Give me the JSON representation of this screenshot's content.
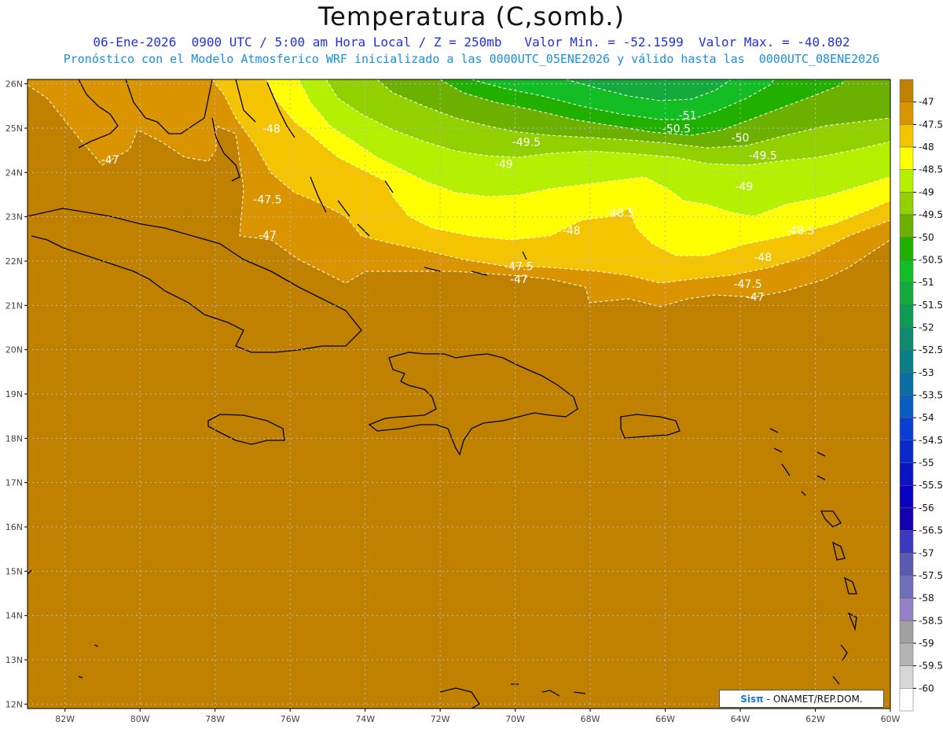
{
  "title": "Temperatura (C,somb.)",
  "subtitle_line1": "06-Ene-2026  0900 UTC / 5:00 am Hora Local / Z = 250mb   Valor Min. = -52.1599  Valor Max. = -40.802",
  "subtitle_line2": "Pronóstico con el Modelo Atmosferico WRF inicializado a las 0000UTC_05ENE2026 y válido hasta las  0000UTC_08ENE2026",
  "map": {
    "lon_min": -83,
    "lon_max": -60,
    "lat_min": 11.9,
    "lat_max": 26.1,
    "lat_ticks": [
      "26N",
      "25N",
      "24N",
      "23N",
      "22N",
      "21N",
      "20N",
      "19N",
      "18N",
      "17N",
      "16N",
      "15N",
      "14N",
      "13N",
      "12N"
    ],
    "lon_ticks": [
      "82W",
      "80W",
      "78W",
      "76W",
      "74W",
      "72W",
      "70W",
      "68W",
      "66W",
      "64W",
      "62W",
      "60W"
    ],
    "grid_color": "#b7b7c8",
    "contour_labels": [
      {
        "text": "-47",
        "lon": -80.8,
        "lat": 24.2
      },
      {
        "text": "-48",
        "lon": -76.5,
        "lat": 24.9
      },
      {
        "text": "-47.5",
        "lon": -76.6,
        "lat": 23.3
      },
      {
        "text": "-47",
        "lon": -76.6,
        "lat": 22.5
      },
      {
        "text": "-49.5",
        "lon": -69.7,
        "lat": 24.6
      },
      {
        "text": "-49",
        "lon": -70.3,
        "lat": 24.1
      },
      {
        "text": "-48.5",
        "lon": -67.2,
        "lat": 23.0
      },
      {
        "text": "-48",
        "lon": -68.5,
        "lat": 22.6
      },
      {
        "text": "-47.5",
        "lon": -69.9,
        "lat": 21.8
      },
      {
        "text": "-47",
        "lon": -69.9,
        "lat": 21.5
      },
      {
        "text": "-51",
        "lon": -65.4,
        "lat": 25.2
      },
      {
        "text": "-50.5",
        "lon": -65.7,
        "lat": 24.9
      },
      {
        "text": "-50",
        "lon": -64.0,
        "lat": 24.7
      },
      {
        "text": "-49.5",
        "lon": -63.4,
        "lat": 24.3
      },
      {
        "text": "-49",
        "lon": -63.9,
        "lat": 23.6
      },
      {
        "text": "-48.5",
        "lon": -62.4,
        "lat": 22.6
      },
      {
        "text": "-48",
        "lon": -63.4,
        "lat": 22.0
      },
      {
        "text": "-47.5",
        "lon": -63.8,
        "lat": 21.4
      },
      {
        "text": "-47",
        "lon": -63.6,
        "lat": 21.1
      }
    ]
  },
  "colorbar": {
    "levels": [
      "-47",
      "-47.5",
      "-48",
      "-48.5",
      "-49",
      "-49.5",
      "-50",
      "-50.5",
      "-51",
      "-51.5",
      "-52",
      "-52.5",
      "-53",
      "-53.5",
      "-54",
      "-54.5",
      "-55",
      "-55.5",
      "-56",
      "-56.5",
      "-57",
      "-57.5",
      "-58",
      "-58.5",
      "-59",
      "-59.5",
      "-60"
    ],
    "colors": [
      "#c08000",
      "#d99400",
      "#f5c400",
      "#ffff00",
      "#b5f000",
      "#92d000",
      "#6cb000",
      "#22b000",
      "#12be23",
      "#14aa3c",
      "#0f9a55",
      "#0f8a6e",
      "#0b7f88",
      "#0a6fa0",
      "#0a5ec2",
      "#083fd0",
      "#0828c8",
      "#0a14c2",
      "#0a00c0",
      "#1400b0",
      "#3a3abf",
      "#5a5ab0",
      "#7070b8",
      "#9480c4",
      "#a0a0a0",
      "#b4b4b4",
      "#d6d6d6",
      "#ffffff"
    ]
  },
  "credit": {
    "logo": "Sisπ",
    "text": "- ONAMET/REP.DOM."
  }
}
